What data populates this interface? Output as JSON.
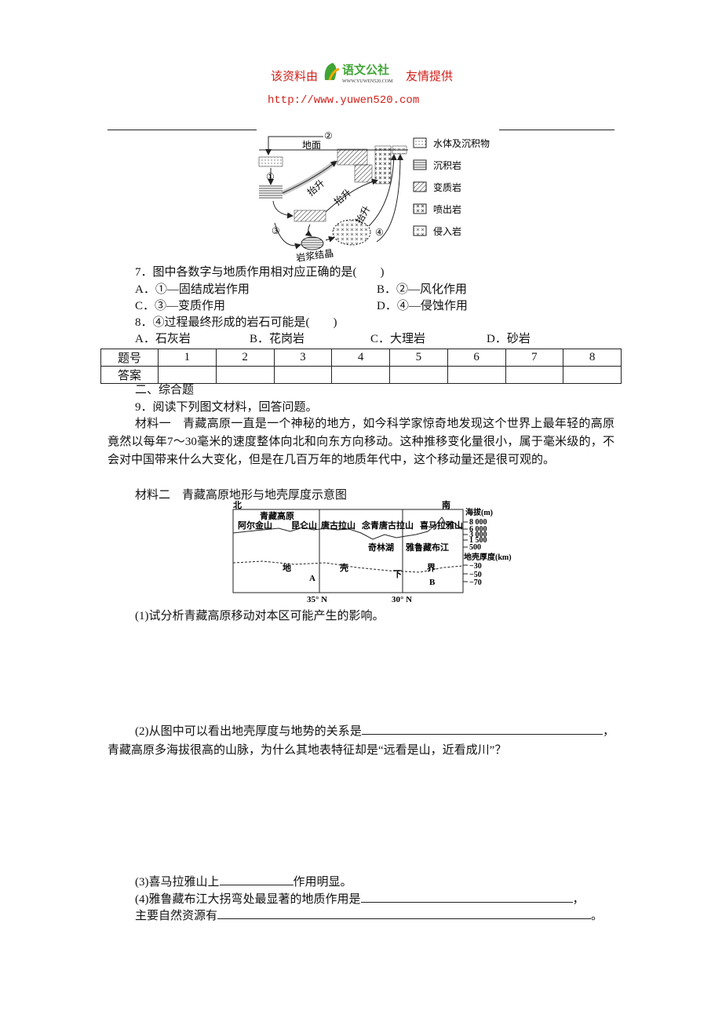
{
  "header": {
    "prefix": "该资料由",
    "logo_text": "语文公社",
    "logo_sub": "WWW.YUWEN520.COM",
    "suffix": "友情提供",
    "url": "http://www.yuwen520.com"
  },
  "rock_diagram": {
    "labels": [
      "地面",
      "①",
      "②",
      "③",
      "④",
      "抬升",
      "抬升",
      "抬升",
      "岩浆结晶"
    ],
    "legend": [
      "水体及沉积物",
      "沉积岩",
      "变质岩",
      "喷出岩",
      "侵入岩"
    ]
  },
  "q7": {
    "stem": "7．图中各数字与地质作用相对应正确的是(　　)",
    "options": [
      "A．①—固结成岩作用",
      "B．②—风化作用",
      "C．③—变质作用",
      "D．④—侵蚀作用"
    ]
  },
  "q8": {
    "stem": "8．④过程最终形成的岩石可能是(　　)",
    "options": [
      "A．石灰岩",
      "B．花岗岩",
      "C．大理岩",
      "D．砂岩"
    ]
  },
  "answer_table": {
    "row_labels": [
      "题号",
      "答案"
    ],
    "numbers": [
      1,
      2,
      3,
      4,
      5,
      6,
      7,
      8
    ]
  },
  "section": "二、综合题",
  "q9": {
    "stem": "9．阅读下列图文材料，回答问题。",
    "material1": "材料一　青藏高原一直是一个神秘的地方，如今科学家惊奇地发现这个世界上最年轻的高原竟然以每年7～30毫米的速度整体向北和向东方向移动。这种推移变化量很小，属于毫米级的，不会对中国带来什么大变化，但是在几百万年的地质年代中，这个移动量还是很可观的。",
    "material2": "材料二　青藏高原地形与地壳厚度示意图",
    "profile": {
      "north": "北",
      "south": "南",
      "plateau": "青藏高原",
      "mountains": [
        "阿尔金山",
        "昆仑山",
        "唐古拉山",
        "念青唐古拉山",
        "喜马拉雅山"
      ],
      "features": [
        "奇林湖",
        "雅鲁藏布江"
      ],
      "elev_title": "海拔(m)",
      "elev_ticks": [
        "8 000",
        "6 000",
        "3 000",
        "1 500",
        "500"
      ],
      "crust_title": "地壳厚度(km)",
      "crust_ticks": [
        "−30",
        "−50",
        "−70"
      ],
      "boundary": [
        "地",
        "壳",
        "下",
        "界"
      ],
      "points": [
        "A",
        "B"
      ],
      "lats": [
        "35° N",
        "30° N"
      ]
    },
    "sub1": "(1)试分析青藏高原移动对本区可能产生的影响。",
    "sub2": [
      "(2)从图中可以看出地壳厚度与地势的关系是",
      "，青藏高原多海拔很高的山脉，为什么其地表特征却是“远看是山，近看成川”？"
    ],
    "sub3": [
      "(3)喜马拉雅山上",
      "作用明显。"
    ],
    "sub4": [
      "(4)雅鲁藏布江大拐弯处最显著的地质作用是",
      "，",
      "主要自然资源有",
      "。"
    ]
  }
}
